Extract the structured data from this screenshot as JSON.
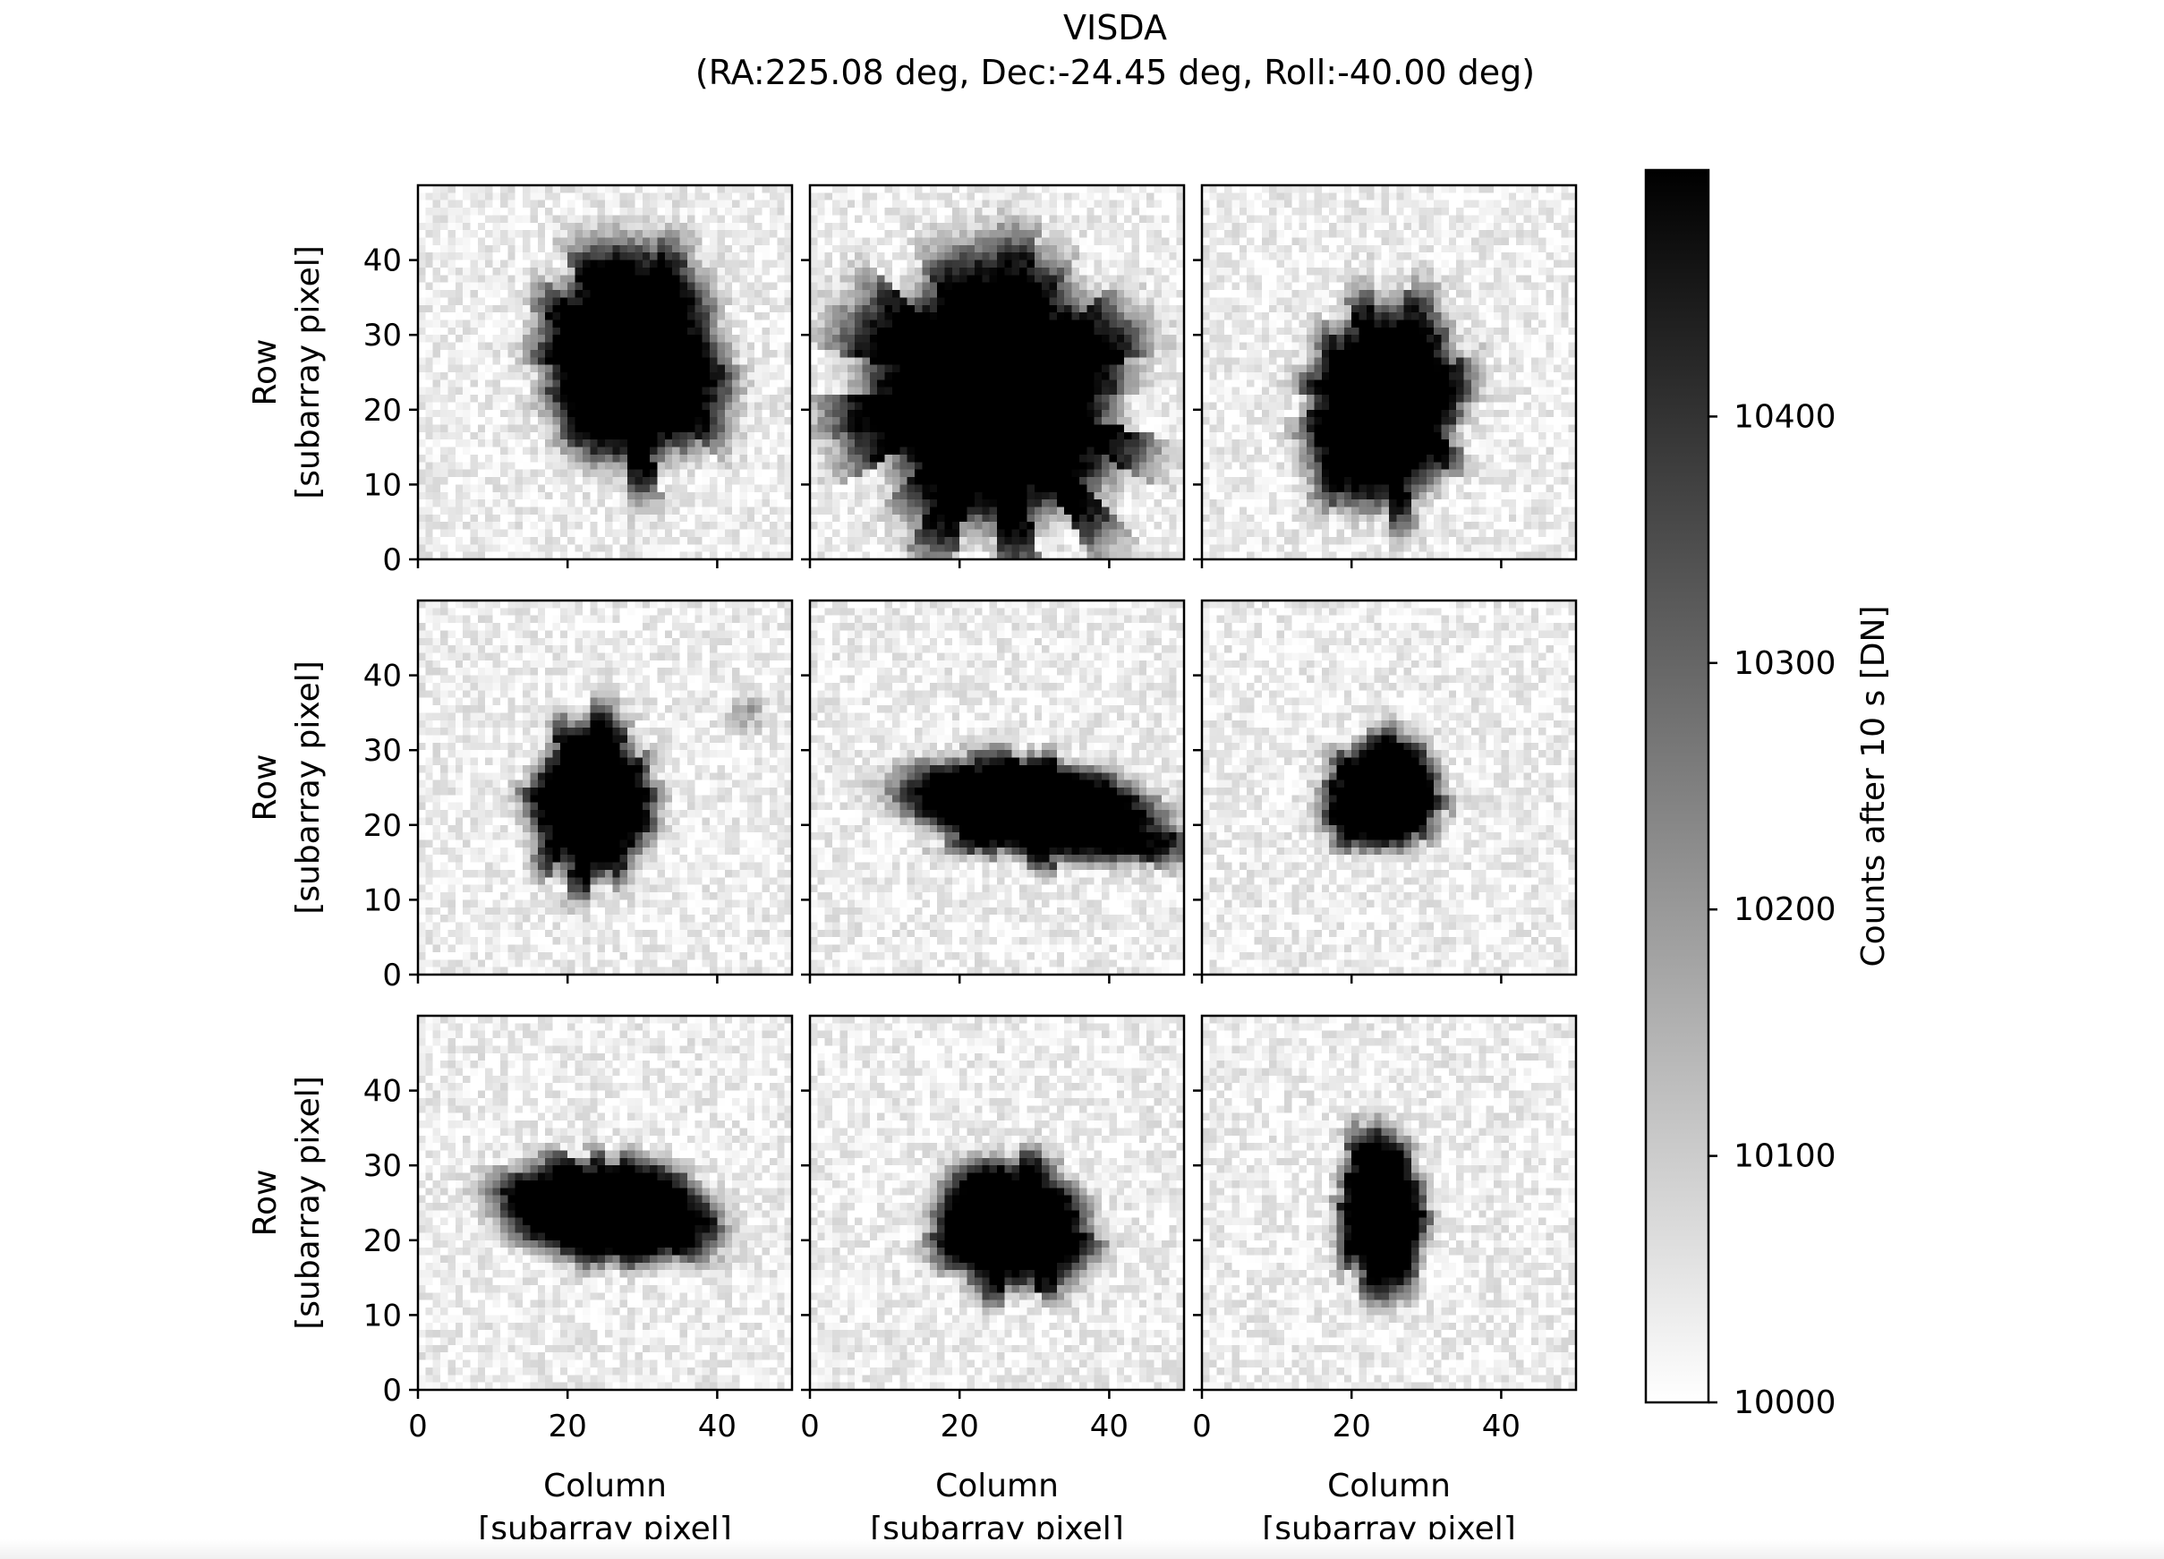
{
  "chart_data": {
    "type": "heatmap",
    "title": "VISDA",
    "subtitle": "(RA:225.08 deg, Dec:-24.45 deg, Roll:-40.00 deg)",
    "grid": {
      "rows": 3,
      "cols": 3
    },
    "xlabel": "Column",
    "xlabel_unit": "[subarray pixel]",
    "ylabel": "Row",
    "ylabel_unit": "[subarray pixel]",
    "xlim": [
      0,
      50
    ],
    "ylim": [
      0,
      50
    ],
    "x_ticks": [
      0,
      20,
      40
    ],
    "y_ticks": [
      0,
      10,
      20,
      30,
      40
    ],
    "colormap": "gray_r",
    "colorbar": {
      "label": "Counts after 10 s [DN]",
      "vmin": 10000,
      "vmax": 10500,
      "ticks": [
        10000,
        10100,
        10200,
        10300,
        10400
      ],
      "background_level": 10030
    },
    "panels": [
      {
        "center": [
          28,
          26
        ],
        "radius": [
          11,
          13
        ],
        "rotation": 0,
        "spikiness": 0.35
      },
      {
        "center": [
          25,
          22
        ],
        "radius": [
          16,
          17
        ],
        "rotation": 0,
        "spikiness": 0.45
      },
      {
        "center": [
          24,
          20
        ],
        "radius": [
          9,
          13
        ],
        "rotation": -12,
        "spikiness": 0.3
      },
      {
        "center": [
          23,
          23
        ],
        "radius": [
          7,
          10
        ],
        "rotation": 0,
        "spikiness": 0.3,
        "extra_source": [
          44,
          35
        ]
      },
      {
        "center": [
          30,
          22
        ],
        "radius": [
          17,
          6
        ],
        "rotation": -10,
        "spikiness": 0.3
      },
      {
        "center": [
          24,
          24
        ],
        "radius": [
          7,
          7
        ],
        "rotation": 0,
        "spikiness": 0.25
      },
      {
        "center": [
          26,
          24
        ],
        "radius": [
          13,
          6
        ],
        "rotation": -6,
        "spikiness": 0.3
      },
      {
        "center": [
          27,
          22
        ],
        "radius": [
          10,
          8
        ],
        "rotation": -8,
        "spikiness": 0.3
      },
      {
        "center": [
          24,
          24
        ],
        "radius": [
          5,
          10
        ],
        "rotation": 0,
        "spikiness": 0.3
      }
    ]
  }
}
